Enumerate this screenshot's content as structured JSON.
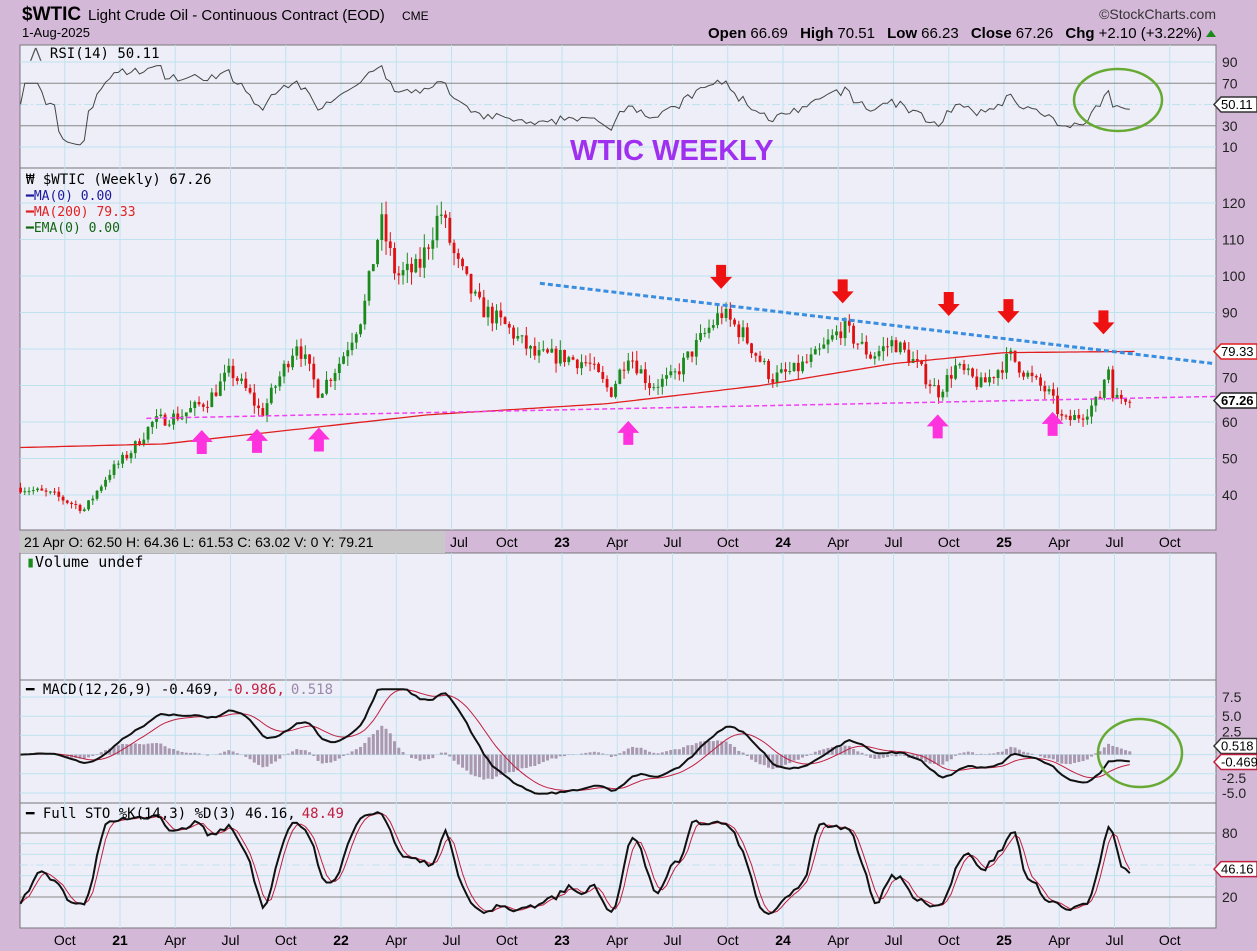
{
  "header": {
    "symbol": "$WTIC",
    "name": "Light Crude Oil - Continuous Contract (EOD)",
    "exchange": "CME",
    "date": "1-Aug-2025",
    "copyright": "©StockCharts.com",
    "open_label": "Open",
    "open": "66.69",
    "high_label": "High",
    "high": "70.51",
    "low_label": "Low",
    "low": "66.23",
    "close_label": "Close",
    "close": "67.26",
    "chg_label": "Chg",
    "chg": "+2.10 (+3.22%)"
  },
  "annotation": "WTIC WEEKLY",
  "rsi": {
    "legend": "RSI(14) 50.11",
    "value_tag": "50.11",
    "ticks": [
      "90",
      "70",
      "50",
      "30",
      "10"
    ]
  },
  "price": {
    "legend": "$WTIC (Weekly) 67.26",
    "ma0": "MA(0) 0.00",
    "ma200": "MA(200) 79.33",
    "ema0": "EMA(0) 0.00",
    "close_tag": "67.26",
    "ma_tag": "79.33",
    "ticks": [
      "120",
      "110",
      "100",
      "90",
      "70",
      "60",
      "50",
      "40"
    ]
  },
  "hover_readout": "21 Apr O: 62.50   H: 64.36   L: 61.53   C: 63.02   V: 0   Y: 79.21",
  "volume": {
    "legend": "Volume undef"
  },
  "macd": {
    "legend_a": "MACD(12,26,9) -0.469,",
    "legend_b": "-0.986,",
    "legend_c": "0.518",
    "ticks": [
      "7.5",
      "5.0",
      "2.5",
      "-2.5",
      "-5.0"
    ],
    "tag_macd": "-0.469",
    "tag_hist": "0.518"
  },
  "sto": {
    "legend_a": "Full STO %K(14,3) %D(3) 46.16,",
    "legend_b": "48.49",
    "tag": "46.16",
    "ticks": [
      "80",
      "20"
    ]
  },
  "x_axis_mid": [
    "Jul",
    "Oct",
    "23",
    "Apr",
    "Jul",
    "Oct",
    "24",
    "Apr",
    "Jul",
    "Oct",
    "25",
    "Apr",
    "Jul",
    "Oct"
  ],
  "x_axis_bottom": [
    "Oct",
    "21",
    "Apr",
    "Jul",
    "Oct",
    "22",
    "Apr",
    "Jul",
    "Oct",
    "23",
    "Apr",
    "Jul",
    "Oct",
    "24",
    "Apr",
    "Jul",
    "Oct",
    "25",
    "Apr",
    "Jul",
    "Oct"
  ],
  "colors": {
    "up": "#1a8a1a",
    "down": "#e01010",
    "ma200": "#e02020",
    "resistance": "#3a8ee0",
    "support": "#f040f0",
    "arrow_down": "#ee1111",
    "arrow_up": "#ff33dd",
    "circle": "#66aa33",
    "annotation": "#a030f0"
  },
  "chart_data": {
    "type": "candlestick",
    "title": "$WTIC Light Crude Oil - Continuous Contract (EOD) Weekly",
    "period": "weekly",
    "x_range": [
      "2020-07",
      "2025-10"
    ],
    "y_range": [
      32,
      130
    ],
    "approx_close_keypoints": [
      [
        2020.55,
        42
      ],
      [
        2020.7,
        40
      ],
      [
        2020.84,
        36
      ],
      [
        2020.95,
        46
      ],
      [
        2021.05,
        52
      ],
      [
        2021.15,
        60
      ],
      [
        2021.28,
        62
      ],
      [
        2021.4,
        66
      ],
      [
        2021.5,
        74
      ],
      [
        2021.58,
        68
      ],
      [
        2021.64,
        62
      ],
      [
        2021.8,
        82
      ],
      [
        2021.9,
        68
      ],
      [
        2022.0,
        77
      ],
      [
        2022.1,
        90
      ],
      [
        2022.18,
        115
      ],
      [
        2022.25,
        100
      ],
      [
        2022.35,
        102
      ],
      [
        2022.45,
        118
      ],
      [
        2022.52,
        104
      ],
      [
        2022.62,
        92
      ],
      [
        2022.75,
        86
      ],
      [
        2022.88,
        78
      ],
      [
        2023.0,
        78
      ],
      [
        2023.12,
        76
      ],
      [
        2023.22,
        68
      ],
      [
        2023.3,
        79
      ],
      [
        2023.4,
        70
      ],
      [
        2023.5,
        72
      ],
      [
        2023.62,
        82
      ],
      [
        2023.72,
        90
      ],
      [
        2023.82,
        84
      ],
      [
        2023.95,
        72
      ],
      [
        2024.05,
        74
      ],
      [
        2024.15,
        78
      ],
      [
        2024.27,
        86
      ],
      [
        2024.4,
        78
      ],
      [
        2024.5,
        82
      ],
      [
        2024.6,
        76
      ],
      [
        2024.7,
        68
      ],
      [
        2024.78,
        75
      ],
      [
        2024.9,
        70
      ],
      [
        2025.03,
        78
      ],
      [
        2025.12,
        72
      ],
      [
        2025.2,
        68
      ],
      [
        2025.27,
        60
      ],
      [
        2025.35,
        62
      ],
      [
        2025.43,
        66
      ],
      [
        2025.47,
        76
      ],
      [
        2025.5,
        66
      ],
      [
        2025.55,
        67
      ],
      [
        2025.58,
        67.26
      ]
    ],
    "ma200_keypoints": [
      [
        2020.55,
        53
      ],
      [
        2021.2,
        54
      ],
      [
        2021.8,
        58
      ],
      [
        2022.4,
        62
      ],
      [
        2023.2,
        65
      ],
      [
        2023.9,
        70
      ],
      [
        2024.5,
        76
      ],
      [
        2025.0,
        79
      ],
      [
        2025.58,
        79.33
      ]
    ],
    "resistance_line": [
      [
        2022.9,
        98
      ],
      [
        2025.95,
        76
      ]
    ],
    "support_line": [
      [
        2021.3,
        61
      ],
      [
        2025.95,
        67
      ]
    ],
    "resistance_touches": [
      2023.72,
      2024.27,
      2024.75,
      2025.02,
      2025.45
    ],
    "support_touches": [
      2021.37,
      2021.62,
      2021.9,
      2023.3,
      2024.7,
      2025.22
    ],
    "last": {
      "close": 67.26,
      "ma200": 79.33,
      "rsi": 50.11,
      "macd": -0.469,
      "signal": -0.986,
      "hist": 0.518,
      "stoK": 46.16,
      "stoD": 48.49
    }
  }
}
